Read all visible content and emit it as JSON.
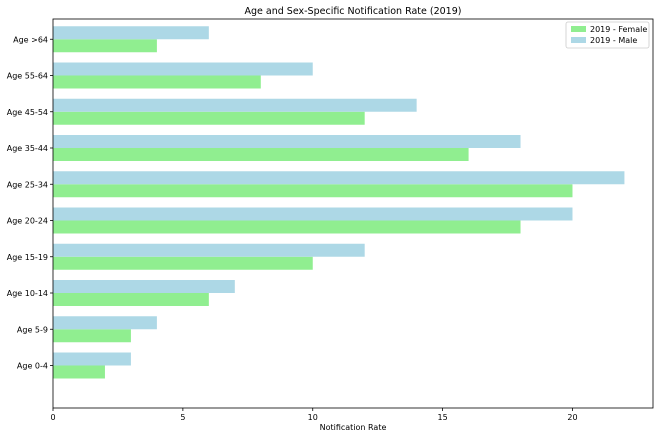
{
  "chart_data": {
    "type": "bar",
    "orientation": "horizontal",
    "title": "Age and Sex-Specific Notification Rate (2019)",
    "xlabel": "Notification Rate",
    "ylabel": "",
    "xlim": [
      0,
      23.1
    ],
    "xticks": [
      0,
      5,
      10,
      15,
      20
    ],
    "categories": [
      "Age 0-4",
      "Age 5-9",
      "Age 10-14",
      "Age 15-19",
      "Age 20-24",
      "Age 25-34",
      "Age 35-44",
      "Age 45-54",
      "Age 55-64",
      "Age >64"
    ],
    "series": [
      {
        "name": "2019 - Female",
        "color": "#90ee90",
        "values": [
          2,
          3,
          6,
          10,
          18,
          20,
          16,
          12,
          8,
          4
        ]
      },
      {
        "name": "2019 - Male",
        "color": "#add8e6",
        "values": [
          3,
          4,
          7,
          12,
          20,
          22,
          18,
          14,
          10,
          6
        ]
      }
    ],
    "grid": false,
    "legend_position": "top-right"
  }
}
